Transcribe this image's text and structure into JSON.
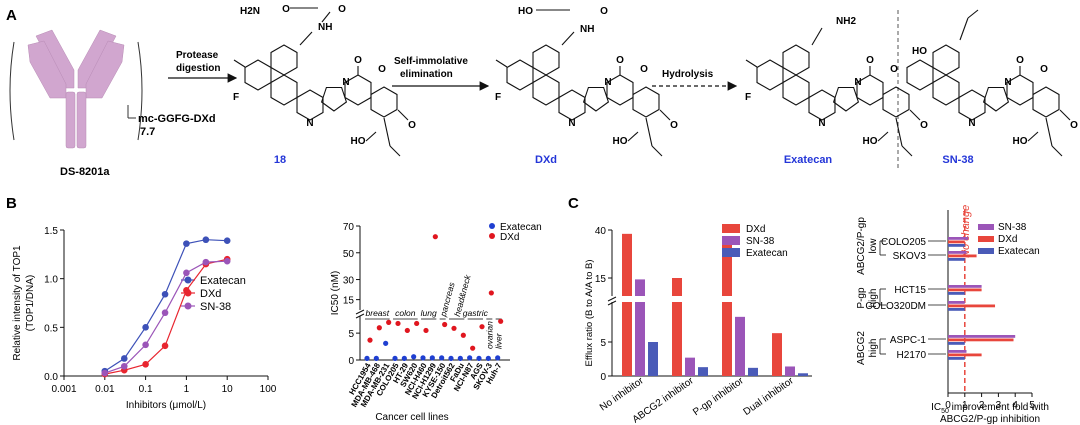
{
  "colors": {
    "topo_exatecan": "#3d51b8",
    "topo_dxd": "#e8252f",
    "topo_sn38": "#9b55b8",
    "bar_dxd": "#e8463c",
    "bar_sn38": "#9b55b8",
    "bar_exatecan": "#4a5bb8",
    "ic50_exatecan": "#1f3fd1",
    "ic50_dxd": "#e0161f",
    "compound_label": "#2436d8",
    "no_change": "#e8463c"
  },
  "panelA": {
    "letter": "A",
    "adc_name": "DS-8201a",
    "linker": "mc-GGFG-DXd",
    "dar": "7.7",
    "step1": [
      "Protease",
      "digestion"
    ],
    "step2": [
      "Self-immolative",
      "elimination"
    ],
    "step3": "Hydrolysis",
    "compounds": [
      "18",
      "DXd",
      "Exatecan",
      "SN-38"
    ],
    "atoms": {
      "h2n": "H2N",
      "nh": "NH",
      "nh2": "NH2",
      "ho": "HO",
      "f": "F",
      "n": "N",
      "o": "O",
      "oh": "OH"
    }
  },
  "panelB": {
    "letter": "B",
    "topo": {
      "ylabel": [
        "Relative intensity of TOP1",
        "(TOP1/DNA)"
      ],
      "xlabel": "Inhibitors (μmol/L)",
      "xticks": [
        "0.001",
        "0.01",
        "0.1",
        "1",
        "10",
        "100"
      ],
      "yticks": [
        "0.0",
        "0.5",
        "1.0",
        "1.5"
      ]
    },
    "ic50": {
      "ylabel": "IC50 (nM)",
      "xlabel": "Cancer cell lines",
      "yticks_low": [
        "0",
        "5"
      ],
      "yticks_high": [
        "15",
        "30",
        "50",
        "70"
      ],
      "tissues": [
        "breast",
        "colon",
        "lung",
        "pancreas",
        "head&neck",
        "gastric",
        "ovarian",
        "liver"
      ],
      "cell_lines": [
        "HCC1954",
        "MDA-MB-468",
        "MDA-MB-231",
        "COLO205",
        "HT-29",
        "SW620",
        "NCI-H460",
        "NCI-H1299",
        "KYSE-150",
        "Detroit562",
        "FaDu",
        "NCI-N87",
        "AGS",
        "SKOV-3",
        "Huh-7"
      ]
    }
  },
  "panelC": {
    "letter": "C",
    "efflux": {
      "ylabel": "Efflux ratio (B to A/A to B)",
      "yticks": [
        "0",
        "5",
        "15",
        "40"
      ],
      "groups": [
        "No inhibitor",
        "ABCG2 inhibitor",
        "P-gp inhibitor",
        "Dual inhibitor"
      ]
    },
    "fold": {
      "no_change": "No change",
      "rows": [
        "COLO205",
        "SKOV3",
        "HCT15",
        "COLO320DM",
        "ASPC-1",
        "H2170"
      ],
      "group_labels": [
        [
          "ABCG2/P-gp",
          "low"
        ],
        [
          "P-gp",
          "high"
        ],
        [
          "ABCG2",
          "high"
        ]
      ],
      "xticks": [
        "0",
        "1",
        "2",
        "3",
        "4",
        "5"
      ],
      "xlabel_pre": "IC",
      "xlabel_sub": "50",
      "xlabel_rest": " improvement fold with",
      "xlabel_line2": "ABCG2/P-gp inhibition"
    }
  },
  "chart_data": [
    {
      "type": "line",
      "xscale": "log",
      "xlabel": "Inhibitors (μmol/L)",
      "ylabel": "Relative intensity of TOP1 (TOP1/DNA)",
      "xlim": [
        0.001,
        100
      ],
      "ylim": [
        0,
        1.5
      ],
      "x": [
        0.01,
        0.03,
        0.1,
        0.3,
        1,
        3,
        10
      ],
      "series": [
        {
          "name": "Exatecan",
          "values": [
            0.05,
            0.18,
            0.5,
            0.84,
            1.36,
            1.4,
            1.39
          ]
        },
        {
          "name": "DXd",
          "values": [
            0.02,
            0.06,
            0.12,
            0.31,
            0.88,
            1.15,
            1.2
          ]
        },
        {
          "name": "SN-38",
          "values": [
            0.03,
            0.1,
            0.32,
            0.65,
            1.06,
            1.17,
            1.18
          ]
        }
      ]
    },
    {
      "type": "scatter",
      "xlabel": "Cancer cell lines",
      "ylabel": "IC50 (nM)",
      "axis_break": true,
      "categories": [
        "HCC1954",
        "MDA-MB-468",
        "MDA-MB-231",
        "COLO205",
        "HT-29",
        "SW620",
        "NCI-H460",
        "NCI-H1299",
        "KYSE-150",
        "Detroit562",
        "FaDu",
        "NCI-N87",
        "AGS",
        "SKOV-3",
        "Huh-7"
      ],
      "series": [
        {
          "name": "Exatecan",
          "values": [
            0.3,
            0.3,
            3.1,
            0.3,
            0.3,
            0.6,
            0.4,
            0.4,
            0.4,
            0.3,
            0.3,
            0.4,
            0.3,
            0.3,
            0.4
          ]
        },
        {
          "name": "DXd",
          "values": [
            3.7,
            6.0,
            7.0,
            6.8,
            5.5,
            6.8,
            5.5,
            62.0,
            6.6,
            5.9,
            4.6,
            2.2,
            6.2,
            20.0,
            7.2
          ]
        }
      ]
    },
    {
      "type": "bar",
      "xlabel": "",
      "ylabel": "Efflux ratio (B to A/A to B)",
      "axis_break": true,
      "categories": [
        "No inhibitor",
        "ABCG2 inhibitor",
        "P-gp inhibitor",
        "Dual inhibitor"
      ],
      "series": [
        {
          "name": "DXd",
          "values": [
            38,
            15,
            34,
            6.3
          ]
        },
        {
          "name": "SN-38",
          "values": [
            14.5,
            2.7,
            8.7,
            1.4
          ]
        },
        {
          "name": "Exatecan",
          "values": [
            5.0,
            1.3,
            1.2,
            0.4
          ]
        }
      ]
    },
    {
      "type": "bar",
      "orientation": "horizontal",
      "xlabel": "IC50 improvement fold with ABCG2/P-gp inhibition",
      "xlim": [
        0,
        5
      ],
      "reference_line": 1,
      "categories": [
        "COLO205",
        "SKOV3",
        "HCT15",
        "COLO320DM",
        "ASPC-1",
        "H2170"
      ],
      "series": [
        {
          "name": "SN-38",
          "values": [
            1.2,
            1.1,
            2.0,
            1.0,
            4.0,
            1.1
          ]
        },
        {
          "name": "DXd",
          "values": [
            1.0,
            1.7,
            2.0,
            2.8,
            3.9,
            2.0
          ]
        },
        {
          "name": "Exatecan",
          "values": [
            1.0,
            1.0,
            1.0,
            1.0,
            1.0,
            1.0
          ]
        }
      ]
    }
  ]
}
